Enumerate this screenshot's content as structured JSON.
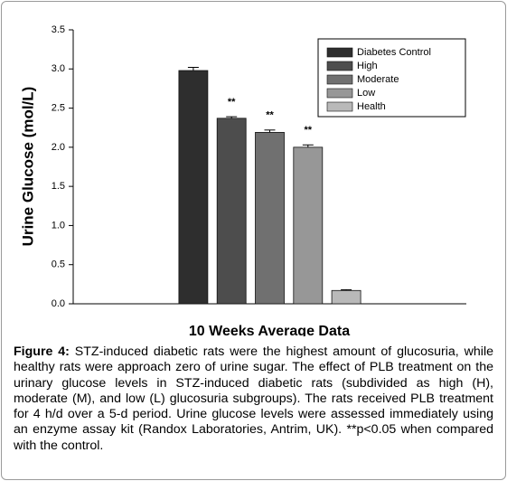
{
  "chart_data": {
    "type": "bar",
    "y_label": "Urine Glucose (mol/L)",
    "x_label": "10 Weeks Average Data",
    "categories": [
      null
    ],
    "series": [
      {
        "name": "Diabetes Control",
        "color": "#2e2e2e",
        "values": [
          2.98
        ],
        "errors": [
          0.04
        ]
      },
      {
        "name": "High",
        "color": "#4d4d4d",
        "values": [
          2.37
        ],
        "errors": [
          0.02
        ],
        "significance": "**"
      },
      {
        "name": "Moderate",
        "color": "#707070",
        "values": [
          2.19
        ],
        "errors": [
          0.03
        ],
        "significance": "**"
      },
      {
        "name": "Low",
        "color": "#979797",
        "values": [
          2.0
        ],
        "errors": [
          0.03
        ],
        "significance": "**"
      },
      {
        "name": "Health",
        "color": "#b9b9b9",
        "values": [
          0.17
        ],
        "errors": [
          0.01
        ]
      }
    ],
    "ylim": [
      0,
      3.5
    ],
    "yticks": [
      {
        "value": 0,
        "label": "0.0"
      },
      0.5,
      {
        "value": 1,
        "label": "1.0"
      },
      1.5,
      {
        "value": 2,
        "label": "2.0"
      },
      2.5,
      {
        "value": 3,
        "label": "3.0"
      },
      3.5
    ],
    "grid": false,
    "legend": "upper-right"
  },
  "caption": {
    "label": "Figure 4:",
    "text": " STZ-induced diabetic rats were the highest amount of glucosuria, while healthy rats were approach zero of urine sugar. The effect of PLB treatment on the urinary glucose levels in STZ-induced diabetic rats (subdivided as high (H), moderate (M), and low (L) glucosuria subgroups). The rats received PLB treatment for 4 h/d over a 5-d period. Urine glucose levels were assessed immediately using an enzyme assay kit (Randox Laboratories, Antrim, UK). **p<0.05 when compared with the control."
  }
}
